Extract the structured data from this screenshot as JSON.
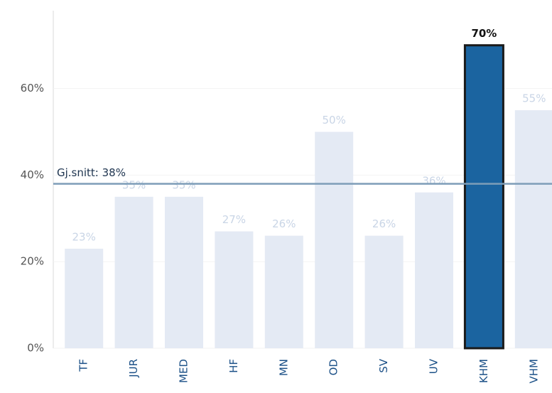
{
  "chart_data": {
    "type": "bar",
    "categories": [
      "TF",
      "JUR",
      "MED",
      "HF",
      "MN",
      "OD",
      "SV",
      "UV",
      "KHM",
      "VHM"
    ],
    "values": [
      23,
      35,
      35,
      27,
      26,
      50,
      26,
      36,
      70,
      55
    ],
    "value_labels": [
      "23%",
      "35%",
      "35%",
      "27%",
      "26%",
      "50%",
      "26%",
      "36%",
      "70%",
      "55%"
    ],
    "colors": [
      "#e4eaf4",
      "#e4eaf4",
      "#e4eaf4",
      "#e4eaf4",
      "#e4eaf4",
      "#e4eaf4",
      "#e4eaf4",
      "#e4eaf4",
      "#1b64a0",
      "#e4eaf4"
    ],
    "ylim": [
      0,
      78
    ],
    "yticks": [
      {
        "value": 0,
        "label": "0%"
      },
      {
        "value": 20,
        "label": "20%"
      },
      {
        "value": 40,
        "label": "40%"
      },
      {
        "value": 60,
        "label": "60%"
      }
    ],
    "grid": true,
    "average": {
      "value": 38,
      "label": "Gj.snitt: 38%"
    }
  }
}
